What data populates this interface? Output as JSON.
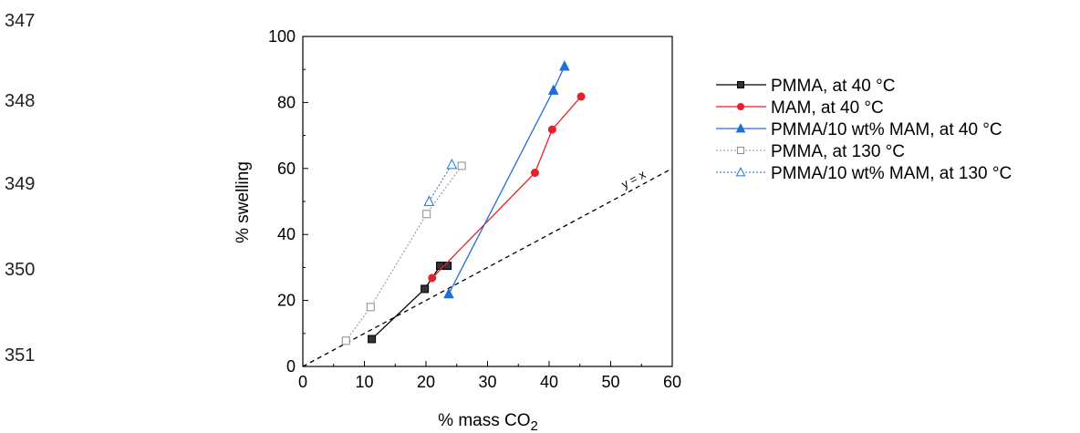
{
  "line_numbers": [
    "347",
    "348",
    "349",
    "350",
    "351"
  ],
  "chart_data": {
    "type": "scatter",
    "xlabel": "% mass CO",
    "xlabel_sub": "2",
    "ylabel": "% swelling",
    "xlim": [
      0,
      60
    ],
    "ylim": [
      0,
      100
    ],
    "xticks": [
      0,
      10,
      20,
      30,
      40,
      50,
      60
    ],
    "yticks": [
      0,
      20,
      40,
      60,
      80,
      100
    ],
    "grid": false,
    "legend_position": "right",
    "series": [
      {
        "name": "PMMA, at 40 °C",
        "color": "#000000",
        "marker": "square-filled",
        "dash": "solid",
        "x": [
          11.2,
          19.8,
          22.3,
          23.5
        ],
        "y": [
          8.3,
          23.5,
          30.5,
          30.5
        ]
      },
      {
        "name": "MAM, at 40 °C",
        "color": "#e8202a",
        "marker": "circle-filled",
        "dash": "solid",
        "x": [
          21.0,
          37.7,
          40.5,
          45.2
        ],
        "y": [
          26.8,
          58.7,
          71.8,
          81.8
        ]
      },
      {
        "name": "PMMA/10 wt% MAM, at 40 °C",
        "color": "#1f6fd8",
        "marker": "triangle-filled",
        "dash": "solid",
        "x": [
          23.7,
          40.7,
          42.5
        ],
        "y": [
          22.0,
          83.7,
          91.0
        ]
      },
      {
        "name": "PMMA, at 130 °C",
        "color": "#8c8c8c",
        "marker": "square-open",
        "dash": "dotted",
        "x": [
          7.0,
          11.0,
          20.1,
          25.8
        ],
        "y": [
          7.8,
          18.0,
          46.2,
          60.8
        ]
      },
      {
        "name": "PMMA/10 wt% MAM, at 130 °C",
        "color": "#1f6fd8",
        "marker": "triangle-open",
        "dash": "dotted",
        "x": [
          20.5,
          24.2
        ],
        "y": [
          50.0,
          61.2
        ]
      }
    ],
    "reference_line": {
      "label": "y = x",
      "x": [
        0,
        60
      ],
      "y": [
        0,
        60
      ]
    }
  }
}
